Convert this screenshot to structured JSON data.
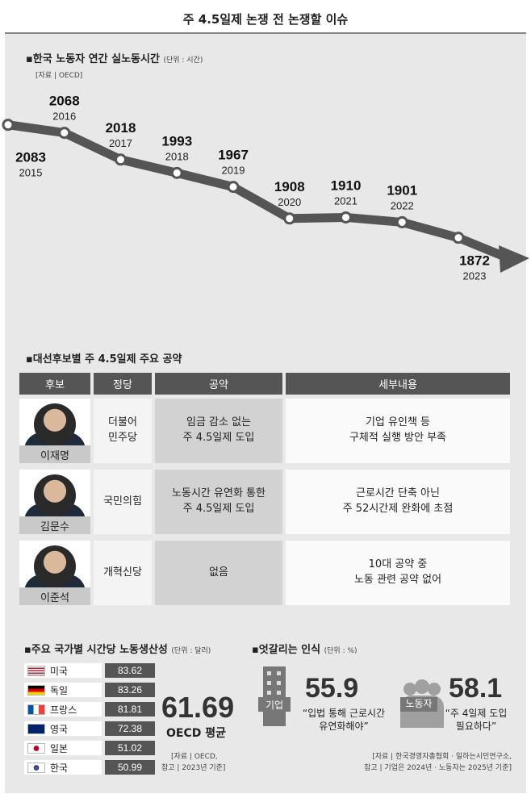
{
  "header": {
    "title": "주 4.5일제 논쟁 전 논쟁할 이슈"
  },
  "chart_data": [
    {
      "type": "line",
      "title": "▪한국 노동자 연간 실노동시간",
      "unit": "(단위 : 시간)",
      "source": "[자료 | OECD]",
      "x": [
        "2015",
        "2016",
        "2017",
        "2018",
        "2019",
        "2020",
        "2021",
        "2022",
        "2023"
      ],
      "values": [
        2083,
        2068,
        2018,
        1993,
        1967,
        1908,
        1910,
        1901,
        1872
      ],
      "value_labels": [
        "2083",
        "2068",
        "2018",
        "1993",
        "1967",
        "1908",
        "1910",
        "1901",
        "1872"
      ]
    },
    {
      "type": "bar",
      "title": "▪주요 국가별 시간당 노동생산성",
      "unit": "(단위 : 달러)",
      "categories": [
        "미국",
        "독일",
        "프랑스",
        "영국",
        "일본",
        "한국"
      ],
      "values": [
        83.62,
        83.26,
        81.81,
        72.38,
        51.02,
        50.99
      ],
      "value_labels": [
        "83.62",
        "83.26",
        "81.81",
        "72.38",
        "51.02",
        "50.99"
      ]
    }
  ],
  "pledges": {
    "title": "▪대선후보별 주 4.5일제 주요 공약",
    "headers": [
      "후보",
      "정당",
      "공약",
      "세부내용"
    ],
    "rows": [
      {
        "name": "이재명",
        "party": "더불어\n민주당",
        "pledge": "임금 감소 없는\n주 4.5일제 도입",
        "detail": "기업 유인책 등\n구체적 실행 방안 부족"
      },
      {
        "name": "김문수",
        "party": "국민의힘",
        "pledge": "노동시간 유연화 통한\n주 4.5일제 도입",
        "detail": "근로시간 단축 아닌\n주 52시간제 완화에 초점"
      },
      {
        "name": "이준석",
        "party": "개혁신당",
        "pledge": "없음",
        "detail": "10대 공약 중\n노동 관련 공약 없어"
      }
    ]
  },
  "productivity": {
    "oecd_value": "61.69",
    "oecd_label": "OECD 평균",
    "source_line1": "[자료 | OECD,",
    "source_line2": "참고 | 2023년 기준]",
    "flag_colors": [
      "#b22234",
      "#000000",
      "#dd0000",
      "#ffce00",
      "#0055a4",
      "#ef4135",
      "#012169",
      "#bc002d",
      "#cd2e3a",
      "#0047a0"
    ]
  },
  "perception": {
    "title": "▪엇갈리는 인식",
    "unit": "(단위 : %)",
    "company_label": "기업",
    "company_value": "55.9",
    "company_quote": "“입법 통해 근로시간\n유연화해야”",
    "worker_label": "노동자",
    "worker_value": "58.1",
    "worker_quote": "“주 4일제 도입\n필요하다”",
    "source_line1": "[자료 | 한국경영자총협회 · 일하는시민연구소,",
    "source_line2": "참고 | 기업은 2024년 · 노동자는 2025년 기준]"
  }
}
